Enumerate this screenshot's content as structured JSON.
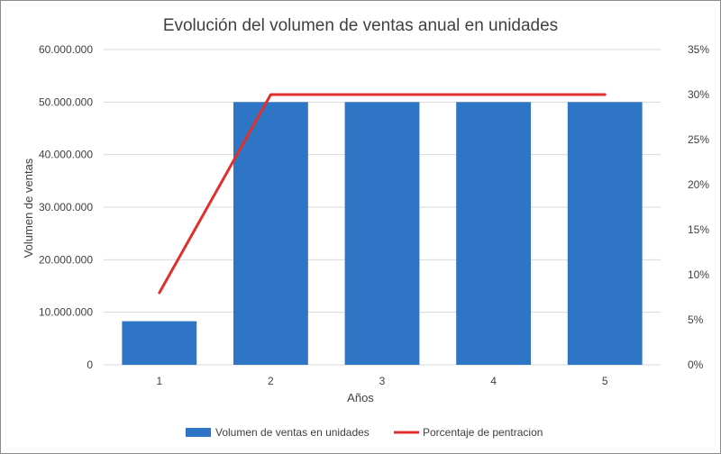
{
  "chart_data": {
    "type": "bar",
    "title": "Evolución del volumen de ventas anual en unidades",
    "xlabel": "Años",
    "ylabel": "Volumen de ventas",
    "categories": [
      "1",
      "2",
      "3",
      "4",
      "5"
    ],
    "ylim": [
      0,
      60000000
    ],
    "y_ticks": [
      "0",
      "10.000.000",
      "20.000.000",
      "30.000.000",
      "40.000.000",
      "50.000.000",
      "60.000.000"
    ],
    "y2lim": [
      0,
      35
    ],
    "y2_ticks": [
      "0%",
      "5%",
      "10%",
      "15%",
      "20%",
      "25%",
      "30%",
      "35%"
    ],
    "grid": true,
    "legend_position": "bottom",
    "series": [
      {
        "name": "Volumen de ventas en unidades",
        "type": "bar",
        "axis": "left",
        "color": "#2e75c6",
        "values": [
          8300000,
          50000000,
          50000000,
          50000000,
          50000000
        ]
      },
      {
        "name": "Porcentaje de pentracion",
        "type": "line",
        "axis": "right",
        "color": "#e0302b",
        "values": [
          8,
          30,
          30,
          30,
          30
        ]
      }
    ]
  }
}
